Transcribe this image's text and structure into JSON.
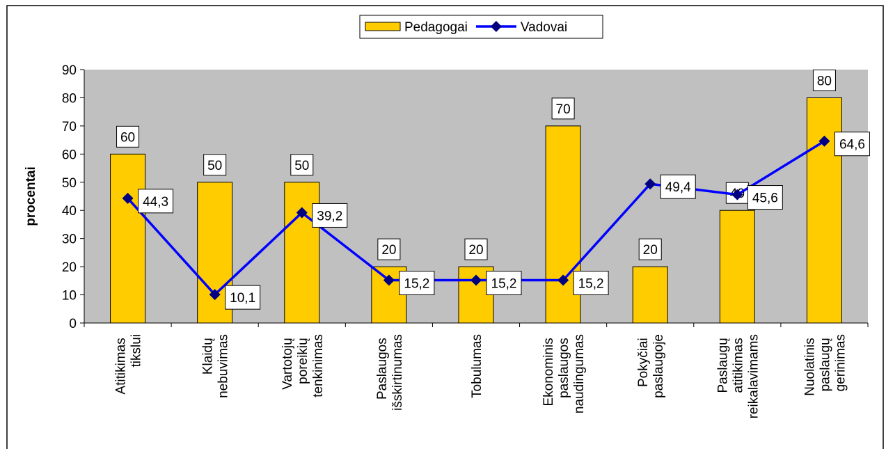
{
  "chart_data": {
    "type": "bar_line",
    "ylabel": "procentai",
    "categories": [
      "Atitikimas tikslui",
      "Klaidų nebuvimas",
      "Vartotojų poreikių tenkinimas",
      "Paslaugos išskirtinumas",
      "Tobulumas",
      "Ekonominis paslaugos naudingumas",
      "Pokyčiai paslaugoje",
      "Paslaugų atitikimas reikalavimams",
      "Nuolatinis paslaugų gerinimas"
    ],
    "series": [
      {
        "name": "Pedagogai",
        "type": "bar",
        "color": "#FFCC00",
        "values": [
          60,
          50,
          50,
          20,
          20,
          70,
          20,
          40,
          80
        ]
      },
      {
        "name": "Vadovai",
        "type": "line",
        "color": "#0000FF",
        "marker_color": "#000080",
        "values": [
          44.3,
          10.1,
          39.2,
          15.2,
          15.2,
          15.2,
          49.4,
          45.6,
          64.6
        ],
        "value_labels": [
          "44,3",
          "10,1",
          "39,2",
          "15,2",
          "15,2",
          "15,2",
          "49,4",
          "45,6",
          "64,6"
        ]
      }
    ],
    "ylim": [
      0,
      90
    ],
    "yticks": [
      0,
      10,
      20,
      30,
      40,
      50,
      60,
      70,
      80,
      90
    ],
    "legend": "top",
    "plot_background": "#C0C0C0"
  }
}
